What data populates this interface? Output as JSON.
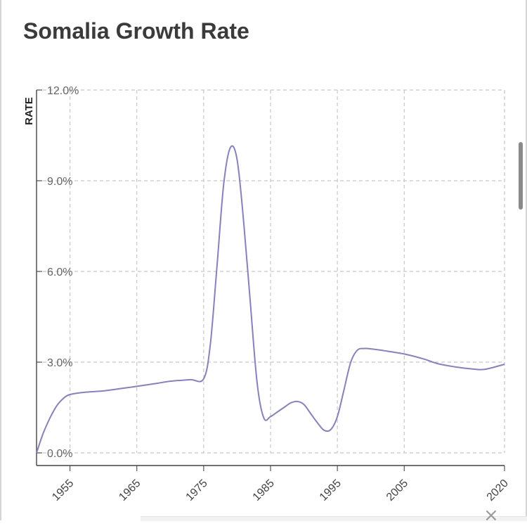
{
  "header": {
    "title": "Somalia Growth Rate"
  },
  "chart_data": {
    "type": "line",
    "ylabel": "RATE",
    "ylim": [
      0,
      12
    ],
    "xlim": [
      1950,
      2020
    ],
    "y_ticks": [
      "0.0%",
      "3.0%",
      "6.0%",
      "9.0%",
      "12.0%"
    ],
    "y_tick_values": [
      0,
      3,
      6,
      9,
      12
    ],
    "x_ticks": [
      "1955",
      "1965",
      "1975",
      "1985",
      "1995",
      "2005",
      "2020"
    ],
    "x_tick_values": [
      1955,
      1965,
      1975,
      1985,
      1995,
      2005,
      2020
    ],
    "grid": true,
    "color": "#8480cc",
    "series": [
      {
        "x": [
          1950,
          1951,
          1952,
          1953,
          1954,
          1955,
          1957,
          1960,
          1963,
          1965,
          1968,
          1970,
          1973,
          1975,
          1976,
          1977,
          1978,
          1979,
          1980,
          1981,
          1982,
          1983,
          1984,
          1985,
          1986,
          1987,
          1988,
          1989,
          1990,
          1991,
          1992,
          1993,
          1994,
          1995,
          1996,
          1997,
          1998,
          1999,
          2000,
          2002,
          2005,
          2008,
          2010,
          2013,
          2015,
          2017,
          2020
        ],
        "y": [
          0.0,
          0.65,
          1.15,
          1.55,
          1.8,
          1.93,
          2.0,
          2.05,
          2.14,
          2.2,
          2.3,
          2.37,
          2.42,
          2.45,
          3.6,
          6.2,
          8.9,
          10.1,
          9.7,
          7.6,
          4.9,
          2.3,
          1.15,
          1.2,
          1.35,
          1.5,
          1.65,
          1.7,
          1.6,
          1.3,
          1.0,
          0.75,
          0.77,
          1.2,
          2.1,
          3.0,
          3.4,
          3.45,
          3.44,
          3.38,
          3.27,
          3.1,
          2.95,
          2.83,
          2.78,
          2.76,
          2.93
        ]
      }
    ]
  },
  "ui": {
    "close_glyph": "×"
  }
}
